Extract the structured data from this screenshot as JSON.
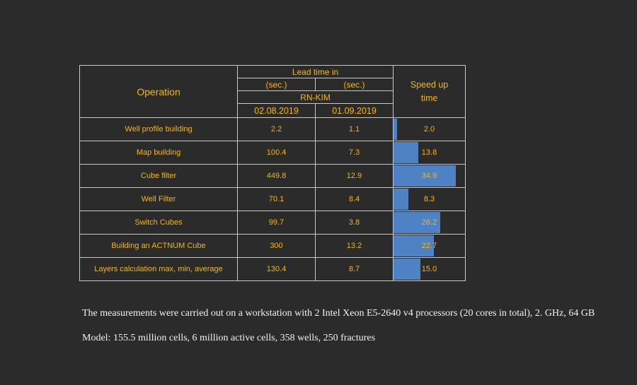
{
  "header": {
    "operation": "Operation",
    "lead_time": "Lead time in",
    "sec_1": "(sec.)",
    "sec_2": "(sec.)",
    "group": "RN-KIM",
    "date_1": "02.08.2019",
    "date_2": "01.09.2019",
    "speed_up_line1": "Speed up",
    "speed_up_line2": "time"
  },
  "speed_max": 40,
  "rows": [
    {
      "operation": "Well profile building",
      "t1": "2.2",
      "t2": "1.1",
      "speed": "2.0",
      "speed_value": 2.0
    },
    {
      "operation": "Map building",
      "t1": "100.4",
      "t2": "7.3",
      "speed": "13.8",
      "speed_value": 13.8
    },
    {
      "operation": "Cube filter",
      "t1": "449.8",
      "t2": "12.9",
      "speed": "34.9",
      "speed_value": 34.9
    },
    {
      "operation": "Well Filter",
      "t1": "70.1",
      "t2": "8.4",
      "speed": "8.3",
      "speed_value": 8.3
    },
    {
      "operation": "Switch Cubes",
      "t1": "99.7",
      "t2": "3.8",
      "speed": "26.2",
      "speed_value": 26.2
    },
    {
      "operation": "Building an ACTNUM Cube",
      "t1": "300",
      "t2": "13.2",
      "speed": "22.7",
      "speed_value": 22.7
    },
    {
      "operation": "Layers calculation max, min, average",
      "t1": "130.4",
      "t2": "8.7",
      "speed": "15.0",
      "speed_value": 15.0
    }
  ],
  "notes": {
    "line1": "The measurements were carried out on a workstation with 2 Intel Xeon E5-2640 v4 processors (20 cores in total), 2. GHz, 64 GB",
    "line2": "Model: 155.5 million cells, 6 million active cells, 358 wells, 250 fractures"
  },
  "colors": {
    "background": "#2b2b2b",
    "text": "#f5b800",
    "bar": "#4f81c5",
    "border": "#c8c8c8"
  }
}
